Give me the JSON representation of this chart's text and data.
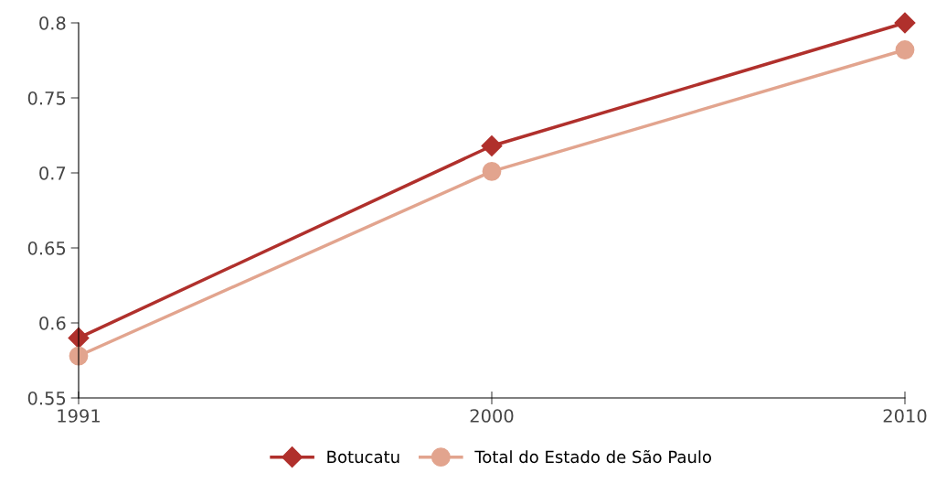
{
  "chart_data": {
    "type": "line",
    "categories": [
      "1991",
      "2000",
      "2010"
    ],
    "series": [
      {
        "name": "Botucatu",
        "color": "#b0302c",
        "marker": "diamond",
        "values": [
          0.59,
          0.718,
          0.8
        ]
      },
      {
        "name": "Total do Estado de São Paulo",
        "color": "#e2a48e",
        "marker": "circle",
        "values": [
          0.578,
          0.701,
          0.782
        ]
      }
    ],
    "ylim": [
      0.55,
      0.8
    ],
    "yticks": [
      {
        "value": 0.55,
        "label": "0.55"
      },
      {
        "value": 0.6,
        "label": "0.6"
      },
      {
        "value": 0.65,
        "label": "0.65"
      },
      {
        "value": 0.7,
        "label": "0.7"
      },
      {
        "value": 0.75,
        "label": "0.75"
      },
      {
        "value": 0.8,
        "label": "0.8"
      }
    ],
    "grid": false,
    "legend": "bottom",
    "line_style": "solid"
  }
}
